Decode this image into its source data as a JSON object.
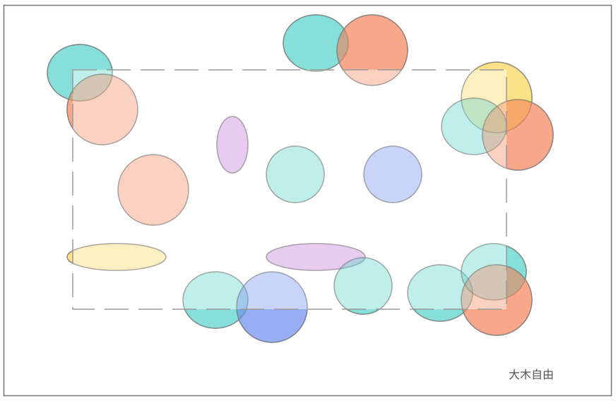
{
  "watermark": {
    "text": "大木自由"
  }
}
